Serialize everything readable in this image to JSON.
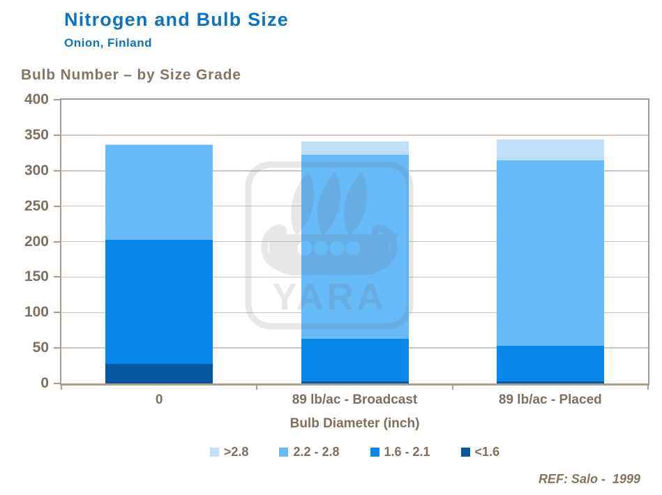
{
  "header": {
    "title": "Nitrogen and Bulb Size",
    "subtitle": "Onion, Finland"
  },
  "chart_heading": "Bulb Number – by Size Grade",
  "footer": {
    "ref": "REF: Salo -  1999"
  },
  "watermark": {
    "brand": "YARA"
  },
  "colors": {
    "accent_blue": "#0d72c2",
    "text_tan": "#7d6f5f",
    "axis_line": "#a89d8e",
    "gridline": "#cfc6b8",
    "series_pale_blue": "#bfdffb",
    "series_sky_blue": "#68bbf9",
    "series_medium_blue": "#0886e9",
    "series_navy_blue": "#04589e"
  },
  "chart_data": {
    "type": "bar",
    "stacked": true,
    "title": "Bulb Number – by Size Grade",
    "xlabel": "Bulb Diameter (inch)",
    "ylabel": "",
    "ylim": [
      0,
      400
    ],
    "ytick_step": 50,
    "grid": true,
    "legend_position": "bottom",
    "categories": [
      "0",
      "89 lb/ac - Broadcast",
      "89 lb/ac - Placed"
    ],
    "series": [
      {
        "name": ">2.8",
        "color": "#bfdffb",
        "values": [
          1,
          19,
          29
        ]
      },
      {
        "name": "2.2 - 2.8",
        "color": "#68bbf9",
        "values": [
          134,
          259,
          262
        ]
      },
      {
        "name": "1.6 - 2.1",
        "color": "#0886e9",
        "values": [
          174,
          60,
          50
        ]
      },
      {
        "name": "<1.6",
        "color": "#04589e",
        "values": [
          28,
          3,
          3
        ]
      }
    ],
    "totals": [
      337,
      341,
      344
    ]
  }
}
